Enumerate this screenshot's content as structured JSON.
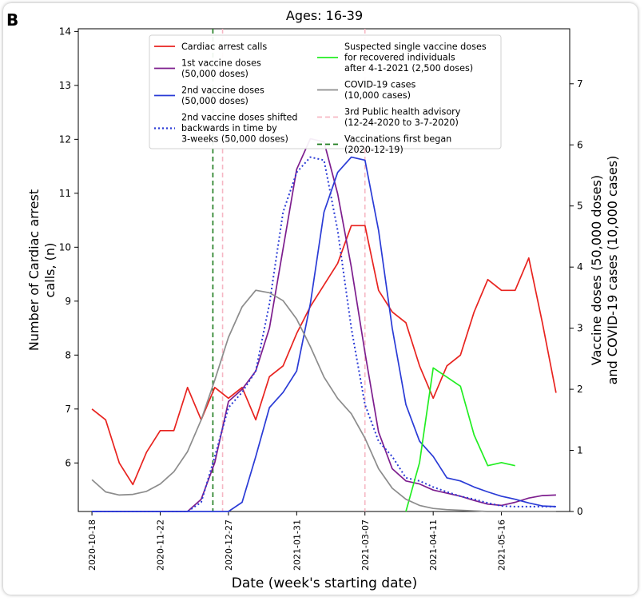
{
  "panel_letter": "B",
  "chart_data": {
    "type": "line",
    "title": "Ages: 16-39",
    "xlabel": "Date (week's starting date)",
    "ylabel_left": "Number of Cardiac arrest calls, (n)",
    "ylabel_right": "Vaccine doses (50,000 doses) and COVID-19 cases (10,000 cases)",
    "ylabel_right_lines": [
      "Vaccine doses (50,000 doses)",
      "and COVID-19 cases (10,000 cases)"
    ],
    "y_left_lim": [
      5.1,
      14.05
    ],
    "y_right_lim": [
      0,
      7.9
    ],
    "y_left_ticks": [
      6,
      7,
      8,
      9,
      10,
      11,
      12,
      13,
      14
    ],
    "y_right_ticks": [
      0,
      1,
      2,
      3,
      4,
      5,
      6,
      7
    ],
    "x_tick_labels": [
      "2020-10-18",
      "2020-11-22",
      "2020-12-27",
      "2021-01-31",
      "2021-03-07",
      "2021-04-11",
      "2021-05-16"
    ],
    "x_tick_weeks": [
      0,
      5,
      10,
      15,
      20,
      25,
      30
    ],
    "x_range_weeks": [
      -1,
      35
    ],
    "grid": false,
    "legend_placement": "top-center",
    "series": [
      {
        "name": "Cardiac arrest calls",
        "axis": "left",
        "color": "#e8231f",
        "dash": "solid",
        "x": [
          0,
          1,
          2,
          3,
          4,
          5,
          6,
          7,
          8,
          9,
          10,
          11,
          12,
          13,
          14,
          15,
          16,
          17,
          18,
          19,
          20,
          21,
          22,
          23,
          24,
          25,
          26,
          27,
          28,
          29,
          30,
          31,
          32,
          33,
          34
        ],
        "values": [
          7.0,
          6.8,
          6.0,
          5.6,
          6.2,
          6.6,
          6.6,
          7.4,
          6.8,
          7.4,
          7.2,
          7.4,
          6.8,
          7.6,
          7.8,
          8.4,
          8.9,
          9.3,
          9.7,
          10.4,
          10.4,
          9.2,
          8.8,
          8.6,
          7.8,
          7.2,
          7.8,
          8.0,
          8.8,
          9.4,
          9.2,
          9.2,
          9.8,
          8.6,
          7.3
        ]
      },
      {
        "name": "1st vaccine doses (50,000 doses)",
        "axis": "right",
        "color": "#7d1e8e",
        "dash": "solid",
        "x": [
          0,
          1,
          2,
          3,
          4,
          5,
          6,
          7,
          8,
          9,
          10,
          11,
          12,
          13,
          14,
          15,
          16,
          17,
          18,
          19,
          20,
          21,
          22,
          23,
          24,
          25,
          26,
          27,
          28,
          29,
          30,
          31,
          32,
          33,
          34
        ],
        "values": [
          0,
          0,
          0,
          0,
          0,
          0,
          0,
          0,
          0.2,
          0.8,
          1.8,
          2.0,
          2.3,
          3.0,
          4.3,
          5.6,
          6.1,
          6.05,
          5.2,
          4.0,
          2.6,
          1.3,
          0.7,
          0.5,
          0.45,
          0.35,
          0.3,
          0.25,
          0.18,
          0.12,
          0.1,
          0.15,
          0.22,
          0.26,
          0.27
        ]
      },
      {
        "name": "2nd vaccine doses (50,000 doses)",
        "axis": "right",
        "color": "#2a3bd6",
        "dash": "solid",
        "x": [
          0,
          1,
          2,
          3,
          4,
          5,
          6,
          7,
          8,
          9,
          10,
          11,
          12,
          13,
          14,
          15,
          16,
          17,
          18,
          19,
          20,
          21,
          22,
          23,
          24,
          25,
          26,
          27,
          28,
          29,
          30,
          31,
          32,
          33,
          34
        ],
        "values": [
          0,
          0,
          0,
          0,
          0,
          0,
          0,
          0,
          0,
          0,
          0,
          0.15,
          0.9,
          1.7,
          1.95,
          2.3,
          3.4,
          4.9,
          5.55,
          5.8,
          5.75,
          4.6,
          3.0,
          1.75,
          1.15,
          0.9,
          0.55,
          0.5,
          0.4,
          0.32,
          0.25,
          0.2,
          0.14,
          0.09,
          0.08
        ]
      },
      {
        "name": "2nd vaccine doses shifted backwards in time by 3-weeks (50,000 doses)",
        "axis": "right",
        "color": "#2a3bd6",
        "dash": "dotted",
        "x": [
          0,
          1,
          2,
          3,
          4,
          5,
          6,
          7,
          8,
          9,
          10,
          11,
          12,
          13,
          14,
          15,
          16,
          17,
          18,
          19,
          20,
          21,
          22,
          23,
          24,
          25,
          26,
          27,
          28,
          29,
          30,
          31,
          32,
          33,
          34
        ],
        "values": [
          0,
          0,
          0,
          0,
          0,
          0,
          0,
          0,
          0.15,
          0.9,
          1.7,
          1.95,
          2.3,
          3.4,
          4.9,
          5.55,
          5.8,
          5.75,
          4.6,
          3.0,
          1.75,
          1.15,
          0.9,
          0.55,
          0.5,
          0.4,
          0.32,
          0.25,
          0.2,
          0.14,
          0.09,
          0.08,
          0.08,
          0.08,
          0.08
        ]
      },
      {
        "name": "Suspected single vaccine doses for recovered individuals after 4-1-2021 (2,500 doses)",
        "axis": "right",
        "color": "#22ee22",
        "dash": "solid",
        "x": [
          23,
          24,
          25,
          26,
          27,
          28,
          29,
          30,
          31
        ],
        "values": [
          0,
          0.8,
          2.35,
          2.2,
          2.05,
          1.25,
          0.75,
          0.8,
          0.75
        ]
      },
      {
        "name": "COVID-19 cases (10,000 cases)",
        "axis": "right",
        "color": "#8c8c8c",
        "dash": "solid",
        "x": [
          0,
          1,
          2,
          3,
          4,
          5,
          6,
          7,
          8,
          9,
          10,
          11,
          12,
          13,
          14,
          15,
          16,
          17,
          18,
          19,
          20,
          21,
          22,
          23,
          24,
          25,
          26,
          27,
          28,
          29,
          30,
          31,
          32,
          33,
          34
        ],
        "values": [
          0.52,
          0.32,
          0.27,
          0.28,
          0.33,
          0.45,
          0.65,
          0.98,
          1.5,
          2.15,
          2.85,
          3.35,
          3.62,
          3.58,
          3.45,
          3.15,
          2.7,
          2.2,
          1.85,
          1.6,
          1.2,
          0.7,
          0.38,
          0.2,
          0.1,
          0.05,
          0.03,
          0.02,
          0.01,
          0,
          0,
          0,
          0,
          0,
          0
        ]
      }
    ],
    "reference_lines": [
      {
        "name": "3rd Public health advisory (12-24-2020 to 3-7-2020)",
        "color": "#f6b7c4",
        "dash": "dashed",
        "x": [
          9.57,
          20
        ]
      },
      {
        "name": "Vaccinations first began (2020-12-19)",
        "color": "#1a7a1a",
        "dash": "dashed",
        "x": [
          8.86
        ]
      }
    ],
    "legend": {
      "left": [
        {
          "kind": "line",
          "color": "#e8231f",
          "dash": "solid",
          "lines": [
            "Cardiac arrest calls"
          ]
        },
        {
          "kind": "line",
          "color": "#7d1e8e",
          "dash": "solid",
          "lines": [
            "1st vaccine doses",
            "(50,000 doses)"
          ]
        },
        {
          "kind": "line",
          "color": "#2a3bd6",
          "dash": "solid",
          "lines": [
            "2nd vaccine doses",
            "(50,000 doses)"
          ]
        },
        {
          "kind": "line",
          "color": "#2a3bd6",
          "dash": "dotted",
          "lines": [
            "2nd vaccine doses shifted",
            "backwards in time by",
            "3-weeks (50,000 doses)"
          ]
        }
      ],
      "right": [
        {
          "kind": "line",
          "color": "#22ee22",
          "dash": "solid",
          "lines": [
            "Suspected single vaccine doses",
            "for recovered individuals",
            "after 4-1-2021 (2,500 doses)"
          ]
        },
        {
          "kind": "line",
          "color": "#8c8c8c",
          "dash": "solid",
          "lines": [
            "COVID-19 cases",
            "(10,000 cases)"
          ]
        },
        {
          "kind": "line",
          "color": "#f6b7c4",
          "dash": "dashed",
          "lines": [
            "3rd Public health advisory",
            "(12-24-2020 to 3-7-2020)"
          ]
        },
        {
          "kind": "line",
          "color": "#1a7a1a",
          "dash": "dashed",
          "lines": [
            "Vaccinations first began",
            "(2020-12-19)"
          ]
        }
      ]
    }
  }
}
